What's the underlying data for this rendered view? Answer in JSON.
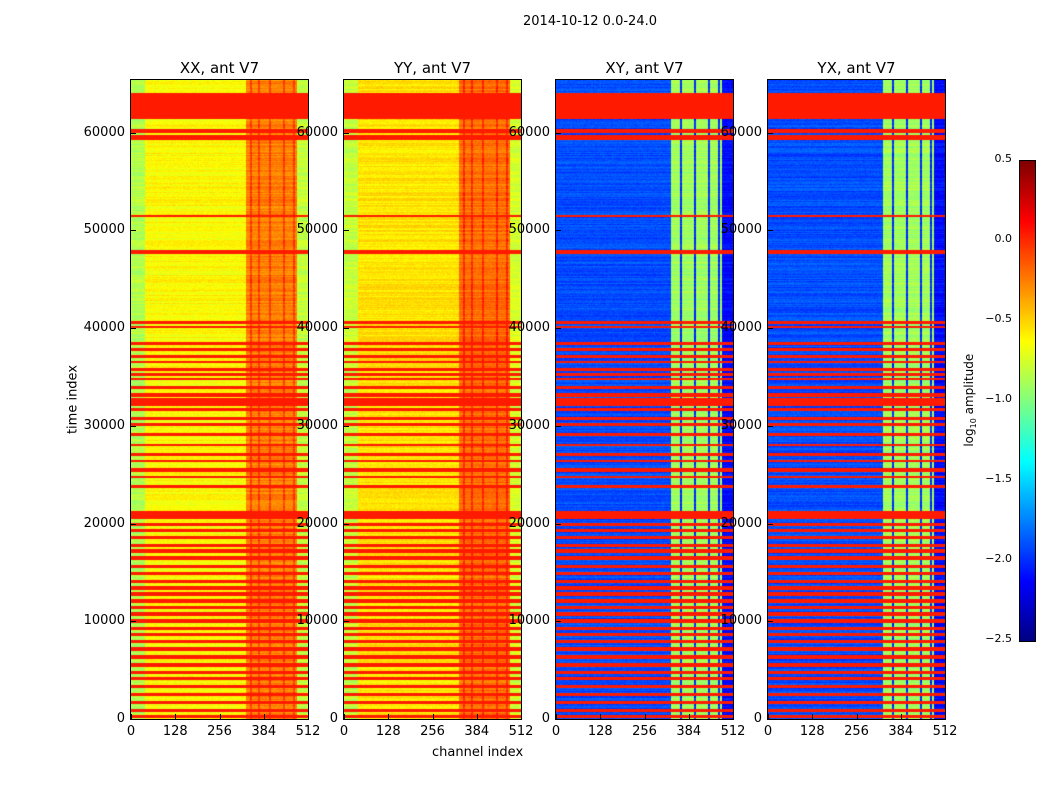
{
  "chart_data": {
    "type": "heatmap",
    "title": "2014-10-12 0.0-24.0",
    "xlabel": "channel index",
    "ylabel": "time index",
    "xlim": [
      0,
      512
    ],
    "ylim": [
      0,
      65400
    ],
    "xticks": [
      0,
      128,
      256,
      384,
      512
    ],
    "yticks": [
      0,
      10000,
      20000,
      30000,
      40000,
      50000,
      60000
    ],
    "xtick_labels": [
      "0",
      "128",
      "256",
      "384",
      "512"
    ],
    "ytick_labels": [
      "0",
      "10000",
      "20000",
      "30000",
      "40000",
      "50000",
      "60000"
    ],
    "colormap": "jet",
    "colorbar": {
      "label": "log10 amplitude",
      "label_main": "log",
      "label_sub": "10",
      "label_rest": " amplitude",
      "range": [
        -2.5,
        0.5
      ],
      "ticks": [
        "0.5",
        "0.0",
        "−0.5",
        "−1.0",
        "−1.5",
        "−2.0",
        "−2.5"
      ],
      "tick_values": [
        0.5,
        0,
        -0.5,
        -1,
        -1.5,
        -2,
        -2.5
      ]
    },
    "flag_value": 0.05,
    "flagged_time_ranges": [
      [
        61500,
        64000
      ],
      [
        60000,
        60300
      ],
      [
        59300,
        59700
      ],
      [
        51400,
        51500
      ],
      [
        47600,
        47900
      ],
      [
        40500,
        40700
      ],
      [
        40100,
        40200
      ],
      [
        38300,
        38500
      ],
      [
        37700,
        37900
      ],
      [
        37000,
        37200
      ],
      [
        36500,
        36600
      ],
      [
        35700,
        35900
      ],
      [
        35200,
        35400
      ],
      [
        34700,
        34900
      ],
      [
        33800,
        34000
      ],
      [
        33000,
        33300
      ],
      [
        32100,
        32800
      ],
      [
        31600,
        31800
      ],
      [
        30700,
        30900
      ],
      [
        30000,
        30200
      ],
      [
        29000,
        29200
      ],
      [
        28000,
        28100
      ],
      [
        27000,
        27200
      ],
      [
        26400,
        26500
      ],
      [
        25300,
        25600
      ],
      [
        24700,
        24800
      ],
      [
        23700,
        23900
      ],
      [
        20500,
        21200
      ],
      [
        19800,
        20000
      ],
      [
        19200,
        19400
      ],
      [
        18500,
        18700
      ],
      [
        17700,
        17900
      ],
      [
        17000,
        17300
      ],
      [
        16300,
        16600
      ],
      [
        15500,
        15700
      ],
      [
        14800,
        15000
      ],
      [
        14000,
        14200
      ],
      [
        13300,
        13600
      ],
      [
        12600,
        12900
      ],
      [
        11900,
        12200
      ],
      [
        11300,
        11500
      ],
      [
        10600,
        10900
      ],
      [
        9900,
        10200
      ],
      [
        9200,
        9400
      ],
      [
        8500,
        8800
      ],
      [
        7800,
        8000
      ],
      [
        7000,
        7300
      ],
      [
        6200,
        6500
      ],
      [
        5400,
        5700
      ],
      [
        4700,
        4900
      ],
      [
        4000,
        4200
      ],
      [
        3200,
        3400
      ],
      [
        2400,
        2600
      ],
      [
        1600,
        1800
      ],
      [
        800,
        1000
      ],
      [
        200,
        400
      ]
    ],
    "panels": [
      {
        "title": "XX, ant V7",
        "profile": [
          {
            "from": 0,
            "to": 40,
            "value": -0.85
          },
          {
            "from": 40,
            "to": 330,
            "value": -0.62
          },
          {
            "from": 330,
            "to": 480,
            "value": -0.25
          },
          {
            "from": 480,
            "to": 512,
            "value": -0.8
          }
        ],
        "stripes": [
          345,
          370,
          400,
          440,
          470
        ],
        "stripe_value": -0.05
      },
      {
        "title": "YY, ant V7",
        "profile": [
          {
            "from": 0,
            "to": 40,
            "value": -0.8
          },
          {
            "from": 40,
            "to": 330,
            "value": -0.55
          },
          {
            "from": 330,
            "to": 480,
            "value": -0.2
          },
          {
            "from": 480,
            "to": 512,
            "value": -0.75
          }
        ],
        "stripes": [
          345,
          370,
          400,
          440,
          470
        ],
        "stripe_value": 0.0
      },
      {
        "title": "XY, ant V7",
        "profile": [
          {
            "from": 0,
            "to": 330,
            "value": -1.9
          },
          {
            "from": 330,
            "to": 480,
            "value": -0.9
          },
          {
            "from": 480,
            "to": 512,
            "value": -2.1
          }
        ],
        "stripes": [
          360,
          400,
          440,
          470
        ],
        "stripe_value": -2.0
      },
      {
        "title": "YX, ant V7",
        "profile": [
          {
            "from": 0,
            "to": 330,
            "value": -1.9
          },
          {
            "from": 330,
            "to": 480,
            "value": -0.9
          },
          {
            "from": 480,
            "to": 512,
            "value": -2.1
          }
        ],
        "stripes": [
          360,
          400,
          440,
          470
        ],
        "stripe_value": -2.0
      }
    ]
  }
}
